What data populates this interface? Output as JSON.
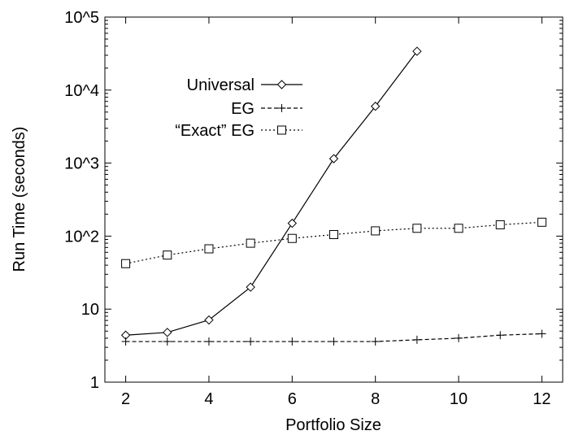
{
  "chart_data": {
    "type": "line",
    "xlabel": "Portfolio Size",
    "ylabel": "Run Time (seconds)",
    "xlim": [
      1.5,
      12.5
    ],
    "ylim": [
      1,
      100000
    ],
    "yscale": "log",
    "xticks": [
      2,
      4,
      6,
      8,
      10,
      12
    ],
    "yticks": [
      {
        "value": 1,
        "label": "1"
      },
      {
        "value": 10,
        "label": "10"
      },
      {
        "value": 100,
        "label": "10^2"
      },
      {
        "value": 1000,
        "label": "10^3"
      },
      {
        "value": 10000,
        "label": "10^4"
      },
      {
        "value": 100000,
        "label": "10^5"
      }
    ],
    "grid": false,
    "legend_position": "top-left",
    "series": [
      {
        "name": "Universal",
        "marker": "diamond",
        "line": "solid",
        "x": [
          2,
          3,
          4,
          5,
          6,
          7,
          8,
          9
        ],
        "values": [
          4.4,
          4.8,
          7.1,
          20,
          150,
          1150,
          6000,
          34000
        ]
      },
      {
        "name": "EG",
        "marker": "plus",
        "line": "dashed",
        "x": [
          2,
          3,
          4,
          5,
          6,
          7,
          8,
          9,
          10,
          11,
          12
        ],
        "values": [
          3.6,
          3.6,
          3.6,
          3.6,
          3.6,
          3.6,
          3.6,
          3.8,
          4.0,
          4.4,
          4.6
        ]
      },
      {
        "name": "“Exact” EG",
        "marker": "square",
        "line": "dotted",
        "x": [
          2,
          3,
          4,
          5,
          6,
          7,
          8,
          9,
          10,
          11,
          12
        ],
        "values": [
          42,
          55,
          67,
          80,
          93,
          105,
          118,
          128,
          128,
          143,
          155
        ]
      }
    ]
  }
}
